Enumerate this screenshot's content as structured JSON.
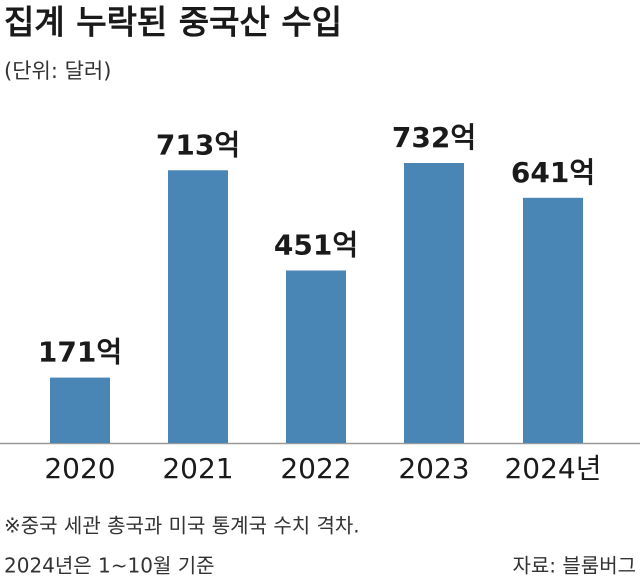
{
  "chart_data": {
    "type": "bar",
    "title": "집계 누락된 중국산 수입",
    "subtitle": "(단위: 달러)",
    "categories": [
      "2020",
      "2021",
      "2022",
      "2023",
      "2024년"
    ],
    "values": [
      171,
      713,
      451,
      732,
      641
    ],
    "value_labels": [
      "171억",
      "713억",
      "451억",
      "732억",
      "641억"
    ],
    "color": "#4a86b5",
    "notes": [
      "※중국 세관 총국과 미국 통계국 수치 격차.",
      "2024년은 1~10월 기준"
    ],
    "source": "자료: 블룸버그"
  }
}
